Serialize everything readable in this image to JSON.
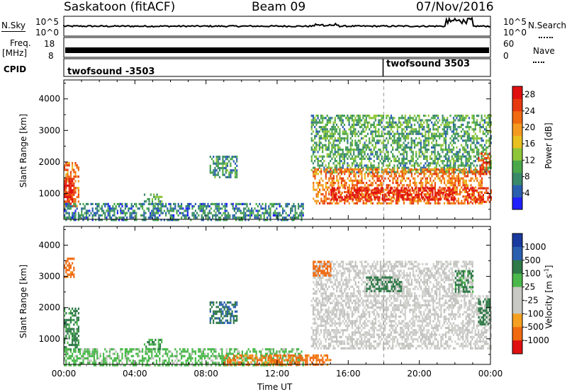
{
  "header": {
    "station": "Saskatoon (fitACF)",
    "beam": "Beam 09",
    "date": "07/Nov/2016"
  },
  "noise_panel": {
    "left_label": "N.Sky",
    "left_ticks": [
      "10^5",
      "10^0"
    ],
    "right_ticks": [
      "10^5",
      "10^0"
    ],
    "right_label": "N.Search"
  },
  "freq_panel": {
    "left_label_1": "Freq.",
    "left_label_2": "[MHz]",
    "left_ticks": [
      "18",
      "8"
    ],
    "right_ticks": [
      "60",
      "0"
    ],
    "right_label": "Nave"
  },
  "cpid": {
    "label": "CPID",
    "programs": [
      {
        "name": "twofsound",
        "id": "-3503",
        "start_hour": 0
      },
      {
        "name": "twofsound",
        "id": "3503",
        "start_hour": 18
      }
    ]
  },
  "colors": {
    "power_scale": [
      "#2020ff",
      "#2a5fb0",
      "#3a8a6a",
      "#4aa84a",
      "#8ec63a",
      "#e8c020",
      "#f59a20",
      "#f06a10",
      "#e83a10",
      "#e01010"
    ],
    "velocity_scale": [
      "#e01010",
      "#f06a10",
      "#f5a020",
      "#d0d0cc",
      "#c0c0bc",
      "#4ab84a",
      "#2f7a48",
      "#2a5fb0",
      "#1a3aa0"
    ]
  },
  "chart_data": [
    {
      "type": "heatmap",
      "title": "",
      "xlabel": "",
      "ylabel": "Slant Range [km]",
      "x_ticks": [
        "00:00",
        "04:00",
        "08:00",
        "12:00",
        "16:00",
        "20:00",
        "00:00"
      ],
      "xlim_hours": [
        0,
        24
      ],
      "y_ticks": [
        1000,
        2000,
        3000,
        4000
      ],
      "ylim": [
        180,
        4600
      ],
      "colorbar_label": "Power [dB]",
      "colorbar_ticks": [
        4,
        8,
        12,
        16,
        20,
        24,
        28
      ],
      "colorbar_range": [
        0,
        30
      ],
      "marker_hour": 18,
      "regions": [
        {
          "t0": 0.0,
          "t1": 0.85,
          "r0": 600,
          "r1": 2000,
          "value": 22
        },
        {
          "t0": 0.0,
          "t1": 0.6,
          "r0": 700,
          "r1": 1500,
          "value": 28
        },
        {
          "t0": 0.0,
          "t1": 13.5,
          "r0": 180,
          "r1": 700,
          "value": 7
        },
        {
          "t0": 4.5,
          "t1": 5.5,
          "r0": 700,
          "r1": 1000,
          "value": 10
        },
        {
          "t0": 8.2,
          "t1": 9.7,
          "r0": 1500,
          "r1": 2200,
          "value": 8
        },
        {
          "t0": 13.9,
          "t1": 24.0,
          "r0": 1700,
          "r1": 3500,
          "value": 10
        },
        {
          "t0": 14.0,
          "t1": 23.5,
          "r0": 700,
          "r1": 1800,
          "value": 22
        },
        {
          "t0": 15.0,
          "t1": 22.0,
          "r0": 800,
          "r1": 1200,
          "value": 28
        },
        {
          "t0": 22.5,
          "t1": 24.0,
          "r0": 700,
          "r1": 1200,
          "value": 27
        },
        {
          "t0": 23.3,
          "t1": 24.0,
          "r0": 1600,
          "r1": 2300,
          "value": 25
        }
      ]
    },
    {
      "type": "heatmap",
      "title": "",
      "xlabel": "Time UT",
      "ylabel": "Slant Range [km]",
      "x_ticks": [
        "00:00",
        "04:00",
        "08:00",
        "12:00",
        "16:00",
        "20:00",
        "00:00"
      ],
      "xlim_hours": [
        0,
        24
      ],
      "y_ticks": [
        1000,
        2000,
        3000,
        4000
      ],
      "ylim": [
        180,
        4600
      ],
      "colorbar_label": "Velocity [m s^-1]",
      "colorbar_ticks": [
        1000,
        500,
        100,
        25,
        -25,
        -100,
        -500,
        -1000
      ],
      "colorbar_tick_labels": [
        "1000",
        "500",
        "100",
        "25",
        "-25",
        "-100",
        "-500",
        "-1000"
      ],
      "marker_hour": 18,
      "regions": [
        {
          "t0": 0.0,
          "t1": 0.85,
          "r0": 600,
          "r1": 2000,
          "value": 150
        },
        {
          "t0": 0.0,
          "t1": 0.6,
          "r0": 3000,
          "r1": 3600,
          "value": -150
        },
        {
          "t0": 0.0,
          "t1": 13.5,
          "r0": 180,
          "r1": 700,
          "value": 50
        },
        {
          "t0": 9.0,
          "t1": 15.0,
          "r0": 180,
          "r1": 500,
          "value": -150
        },
        {
          "t0": 4.5,
          "t1": 5.5,
          "r0": 700,
          "r1": 1000,
          "value": 100
        },
        {
          "t0": 8.2,
          "t1": 9.7,
          "r0": 1500,
          "r1": 2200,
          "value": 500
        },
        {
          "t0": 13.9,
          "t1": 24.0,
          "r0": 700,
          "r1": 2400,
          "value": 0
        },
        {
          "t0": 14.0,
          "t1": 23.0,
          "r0": 2400,
          "r1": 3500,
          "value": 0
        },
        {
          "t0": 17.0,
          "t1": 19.0,
          "r0": 2500,
          "r1": 3000,
          "value": 200
        },
        {
          "t0": 22.0,
          "t1": 23.0,
          "r0": 2500,
          "r1": 3200,
          "value": 150
        },
        {
          "t0": 23.3,
          "t1": 24.0,
          "r0": 1500,
          "r1": 2300,
          "value": 300
        },
        {
          "t0": 14.0,
          "t1": 15.0,
          "r0": 3000,
          "r1": 3500,
          "value": -200
        }
      ]
    }
  ]
}
